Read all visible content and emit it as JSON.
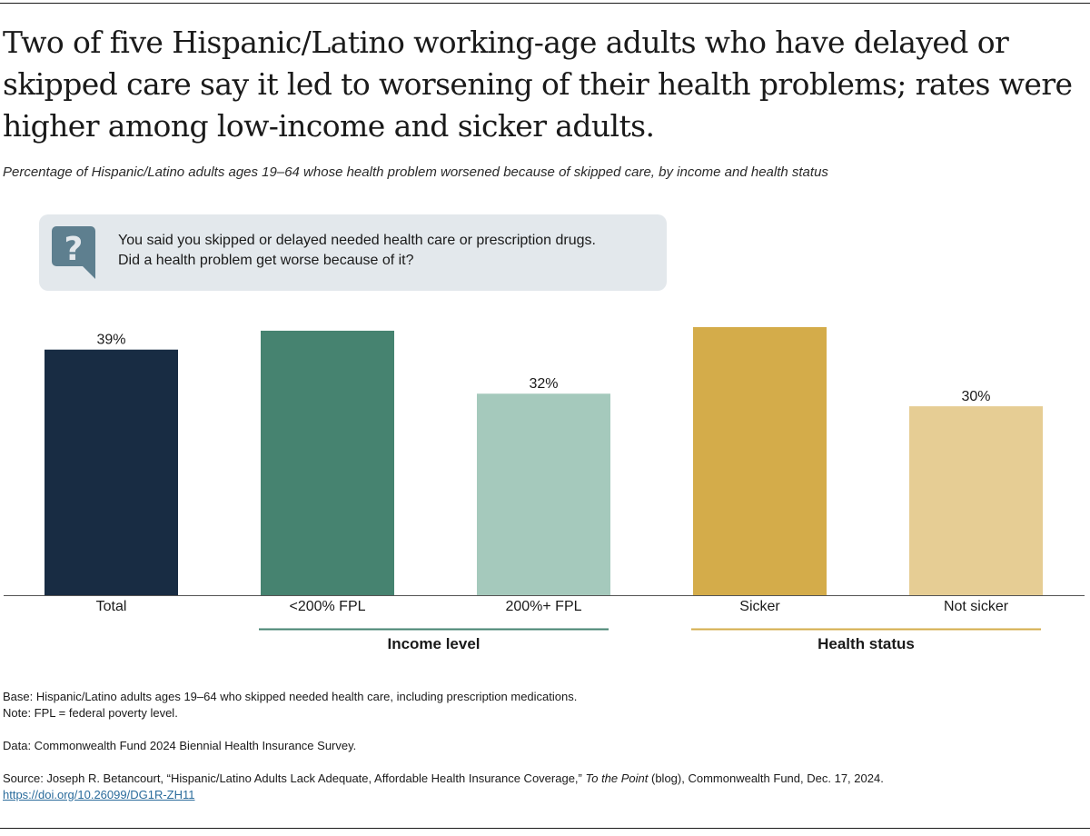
{
  "title": "Two of five Hispanic/Latino working-age adults who have delayed or skipped care say it led to worsening of their health problems; rates were higher among low-income and sicker adults.",
  "subtitle": "Percentage of Hispanic/Latino adults ages 19–64 whose health problem worsened because of skipped care, by income and health status",
  "question": {
    "icon": "question-bubble-icon",
    "line1": "You said you skipped or delayed needed health care or prescription drugs.",
    "line2": "Did a health problem get worse because of it?"
  },
  "chart_data": {
    "type": "bar",
    "title": "",
    "xlabel": "",
    "ylabel": "",
    "ylim": [
      0,
      50
    ],
    "unit": "%",
    "grid": false,
    "categories": [
      "Total",
      "<200% FPL",
      "200%+ FPL",
      "Sicker",
      "Not sicker"
    ],
    "values": [
      39,
      42,
      32,
      43,
      30
    ],
    "colors": [
      "#182c43",
      "#468370",
      "#a5c9bc",
      "#d4ac4a",
      "#e6cd94"
    ],
    "groups": [
      {
        "label": "Income level",
        "categories": [
          "<200% FPL",
          "200%+ FPL"
        ],
        "color": "#468370"
      },
      {
        "label": "Health status",
        "categories": [
          "Sicker",
          "Not sicker"
        ],
        "color": "#d4ac4a"
      }
    ]
  },
  "footnotes": {
    "base": "Base: Hispanic/Latino adults ages 19–64 who skipped needed health care, including prescription medications.",
    "note": "Note: FPL = federal poverty level.",
    "data": "Data: Commonwealth Fund 2024 Biennial Health Insurance Survey.",
    "source_before": "Source: Joseph R. Betancourt, “Hispanic/Latino Adults Lack Adequate, Affordable Health Insurance Coverage,” ",
    "source_italic": "To the Point",
    "source_after": " (blog), Commonwealth Fund, Dec. 17, 2024.",
    "doi": "https://doi.org/10.26099/DG1R-ZH11"
  }
}
